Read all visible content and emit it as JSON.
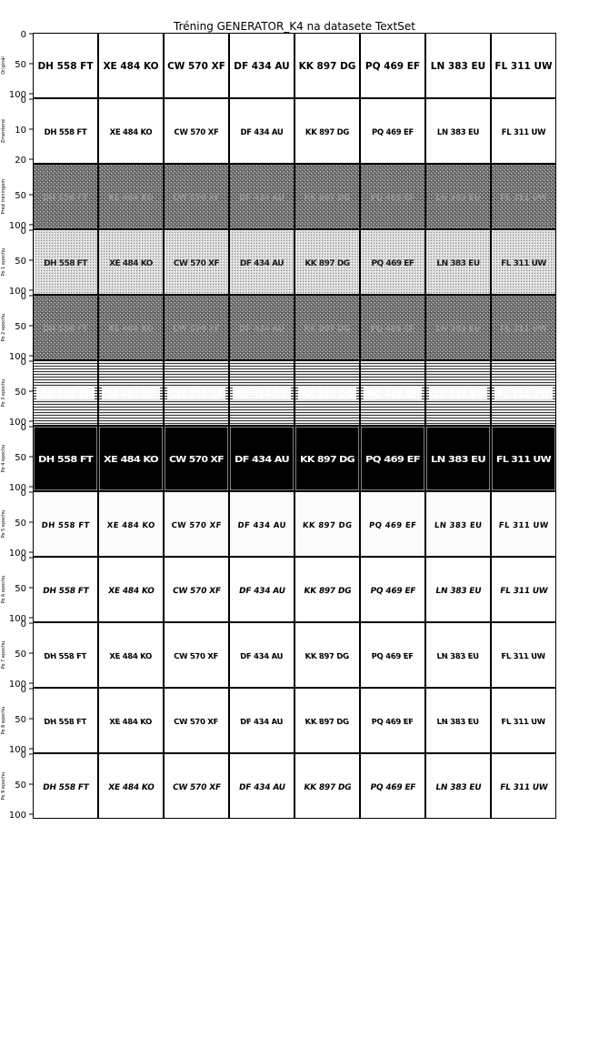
{
  "chart_data": {
    "type": "image-grid",
    "title": "Tréning GENERATOR_K4 na datasete TextSet",
    "columns": [
      "DH 558 FT",
      "XE 484 KO",
      "CW 570 XF",
      "DF 434 AU",
      "KK 897 DG",
      "PQ 469 EF",
      "LN 383 EU",
      "FL 311 UW"
    ],
    "rows": [
      {
        "label": "Originál",
        "yticks": [
          "0",
          "50",
          "100"
        ],
        "style": "original"
      },
      {
        "label": "Zmenšené",
        "yticks": [
          "0",
          "10",
          "20"
        ],
        "style": "small"
      },
      {
        "label": "Pred tréningom",
        "yticks": [
          "50",
          "100"
        ],
        "style": "noise-dark"
      },
      {
        "label": "Po 1 epochu",
        "yticks": [
          "0",
          "50",
          "100"
        ],
        "style": "noise-light"
      },
      {
        "label": "Po 2 epochu",
        "yticks": [
          "0",
          "50",
          "100"
        ],
        "style": "noise-dark"
      },
      {
        "label": "Po 3 epochu",
        "yticks": [
          "0",
          "50",
          "100"
        ],
        "style": "stripes"
      },
      {
        "label": "Po 4 epochu",
        "yticks": [
          "0",
          "50",
          "100"
        ],
        "style": "inverted"
      },
      {
        "label": "Po 5 epochu",
        "yticks": [
          "0",
          "50",
          "100"
        ],
        "style": "light-glyphs"
      },
      {
        "label": "Po 6 epochu",
        "yticks": [
          "0",
          "50",
          "100"
        ],
        "style": "glyphs"
      },
      {
        "label": "Po 7 epochu",
        "yticks": [
          "0",
          "50",
          "100"
        ],
        "style": "glyphs-round"
      },
      {
        "label": "Po 8 epochu",
        "yticks": [
          "0",
          "50",
          "100"
        ],
        "style": "glyphs-round"
      },
      {
        "label": "Po 9 epochu",
        "yticks": [
          "0",
          "50",
          "100"
        ],
        "style": "glyphs"
      }
    ]
  }
}
